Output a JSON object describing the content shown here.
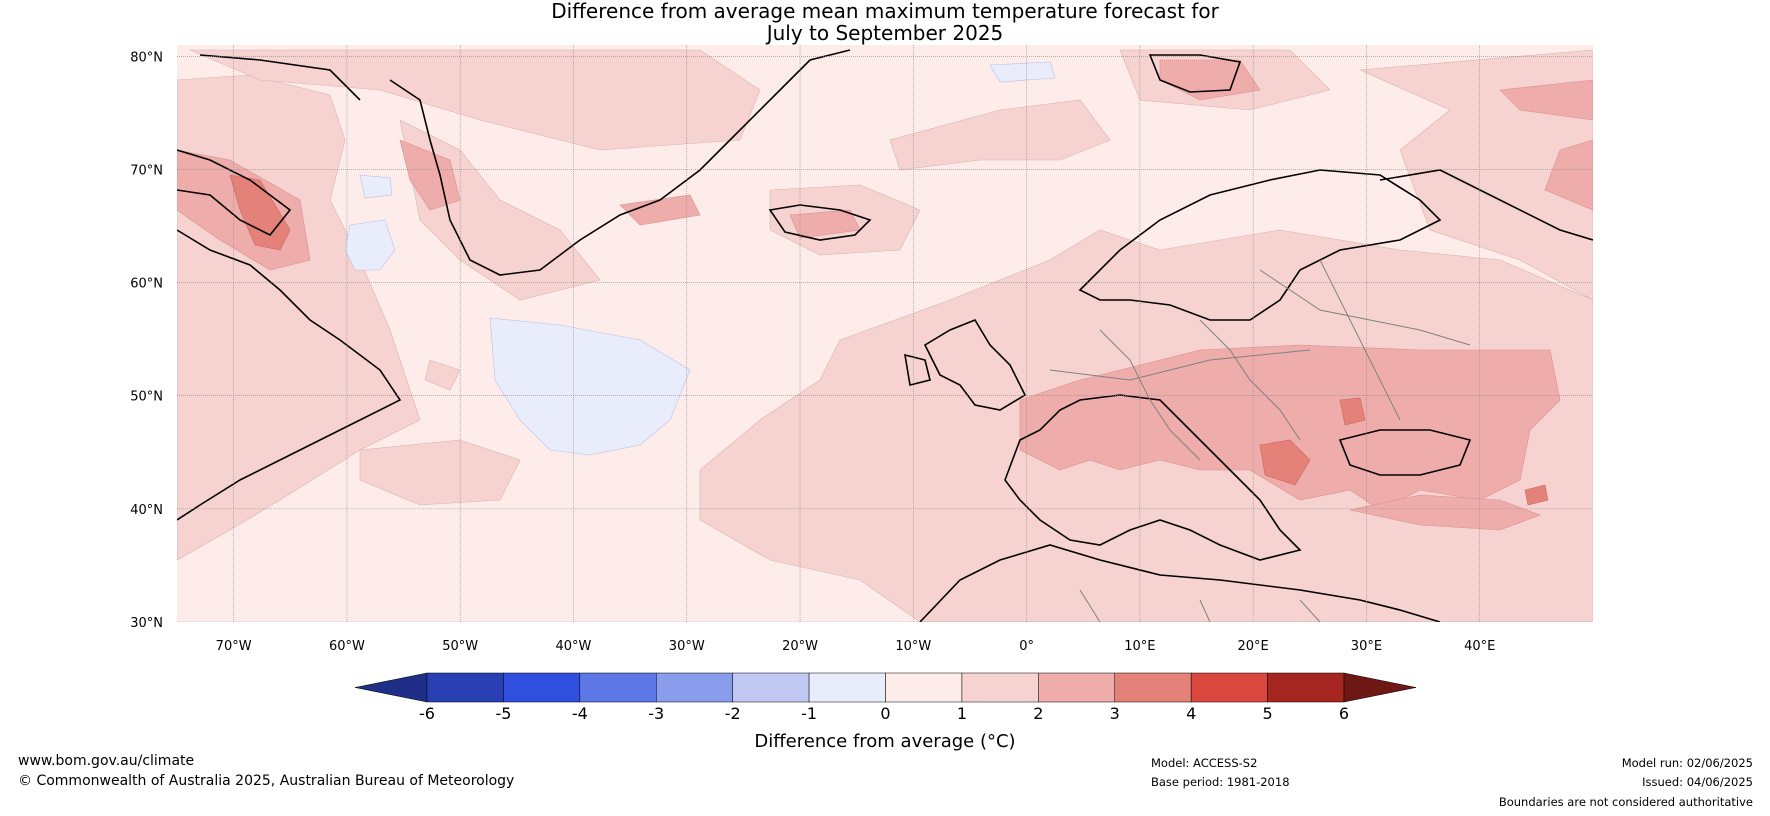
{
  "title": {
    "line1": "Difference from average mean maximum temperature forecast for",
    "line2": "July to September 2025"
  },
  "map": {
    "lat_ticks": [
      {
        "value": 80,
        "label": "80°N"
      },
      {
        "value": 70,
        "label": "70°N"
      },
      {
        "value": 60,
        "label": "60°N"
      },
      {
        "value": 50,
        "label": "50°N"
      },
      {
        "value": 40,
        "label": "40°N"
      },
      {
        "value": 30,
        "label": "30°N"
      }
    ],
    "lon_ticks": [
      {
        "value": -70,
        "label": "70°W"
      },
      {
        "value": -60,
        "label": "60°W"
      },
      {
        "value": -50,
        "label": "50°W"
      },
      {
        "value": -40,
        "label": "40°W"
      },
      {
        "value": -30,
        "label": "30°W"
      },
      {
        "value": -20,
        "label": "20°W"
      },
      {
        "value": -10,
        "label": "10°W"
      },
      {
        "value": 0,
        "label": "0°"
      },
      {
        "value": 10,
        "label": "10°E"
      },
      {
        "value": 20,
        "label": "20°E"
      },
      {
        "value": 30,
        "label": "30°E"
      },
      {
        "value": 40,
        "label": "40°E"
      }
    ],
    "lon_range": [
      -75,
      50
    ],
    "lat_range": [
      30,
      81
    ],
    "gridlines": true,
    "colors": {
      "background_0_1": "#fdecea",
      "band_1_2": "#f6d3d0",
      "band_2_3": "#eeadab",
      "band_3_4": "#e48179",
      "band_neg1_0": "#e9ecfb"
    }
  },
  "colorbar": {
    "label": "Difference from average (°C)",
    "ticks": [
      "-6",
      "-5",
      "-4",
      "-3",
      "-2",
      "-1",
      "0",
      "1",
      "2",
      "3",
      "4",
      "5",
      "6"
    ],
    "colors": [
      "#1f2e86",
      "#2840b4",
      "#2f4fdf",
      "#5e77e6",
      "#8a9cec",
      "#c0c8f3",
      "#e9ecfb",
      "#fdecea",
      "#f6d3d0",
      "#eeadab",
      "#e48179",
      "#d9473d",
      "#a52620",
      "#6e1815"
    ]
  },
  "footer": {
    "website": "www.bom.gov.au/climate",
    "copyright": "© Commonwealth of Australia 2025, Australian Bureau of Meteorology",
    "model": "Model: ACCESS-S2",
    "base_period": "Base period: 1981-2018",
    "model_run": "Model run: 02/06/2025",
    "issued": "Issued: 04/06/2025",
    "disclaimer": "Boundaries are not considered authoritative"
  }
}
